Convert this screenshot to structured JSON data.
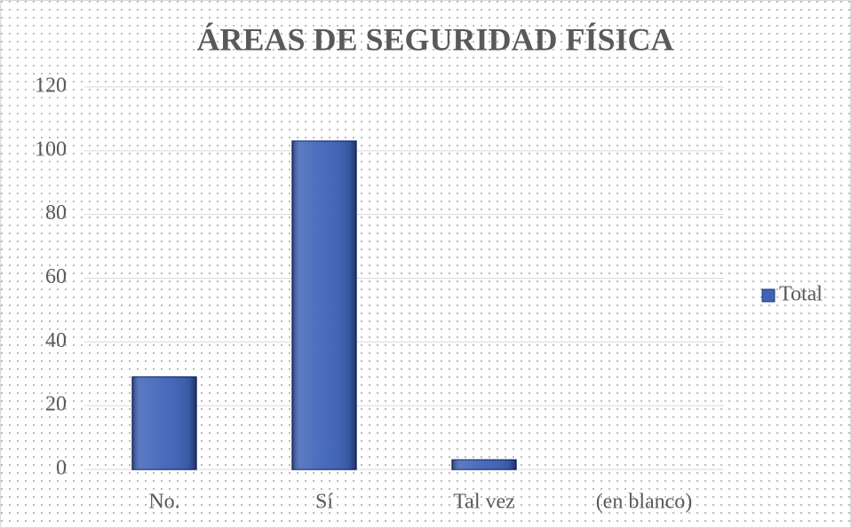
{
  "chart_data": {
    "type": "bar",
    "title": "ÁREAS DE SEGURIDAD FÍSICA",
    "categories": [
      "No.",
      "Sí",
      "Tal vez",
      "(en blanco)"
    ],
    "series": [
      {
        "name": "Total",
        "color": "#3f63b8",
        "values": [
          29,
          103,
          3,
          0
        ]
      }
    ],
    "ylim": [
      0,
      120
    ],
    "yticks": [
      0,
      20,
      40,
      60,
      80,
      100,
      120
    ],
    "grid": true,
    "legend": "right"
  }
}
